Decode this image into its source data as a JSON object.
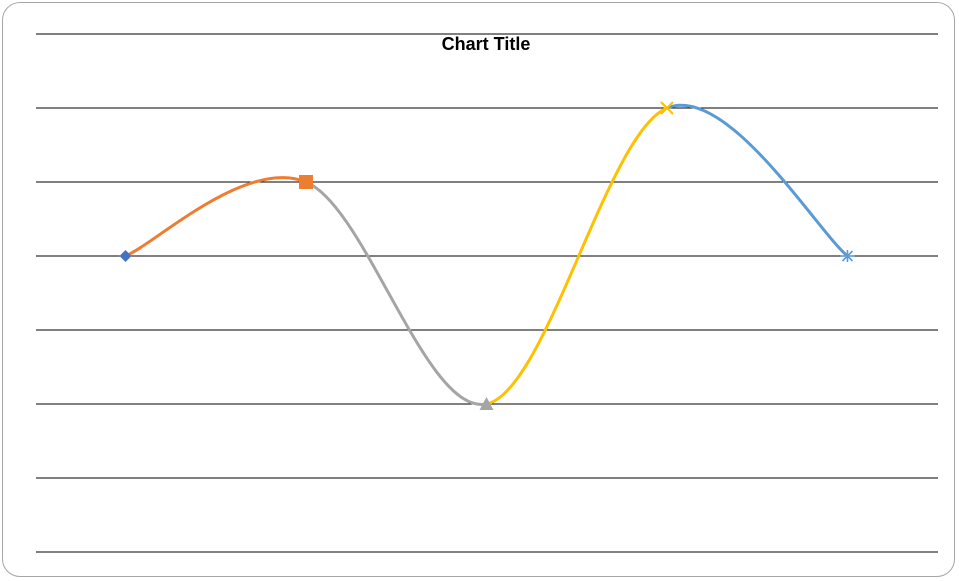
{
  "chart_data": {
    "type": "line",
    "title": "Chart Title",
    "xlabel": "",
    "ylabel": "",
    "smooth": true,
    "grid": true,
    "legend": "none",
    "ylim": [
      0,
      7
    ],
    "points": [
      {
        "x": 1,
        "y": 4,
        "marker": "diamond",
        "color": "#4472C4"
      },
      {
        "x": 2,
        "y": 5,
        "marker": "square",
        "color": "#ED7D31"
      },
      {
        "x": 3,
        "y": 2,
        "marker": "triangle",
        "color": "#A5A5A5"
      },
      {
        "x": 4,
        "y": 6,
        "marker": "x",
        "color": "#FFC000"
      },
      {
        "x": 5,
        "y": 4,
        "marker": "star",
        "color": "#5B9BD5"
      }
    ],
    "segments": [
      {
        "from": 0,
        "to": 1,
        "color": "#ED7D31"
      },
      {
        "from": 1,
        "to": 2,
        "color": "#A5A5A5"
      },
      {
        "from": 2,
        "to": 3,
        "color": "#FFC000"
      },
      {
        "from": 3,
        "to": 4,
        "color": "#5B9BD5"
      }
    ]
  }
}
